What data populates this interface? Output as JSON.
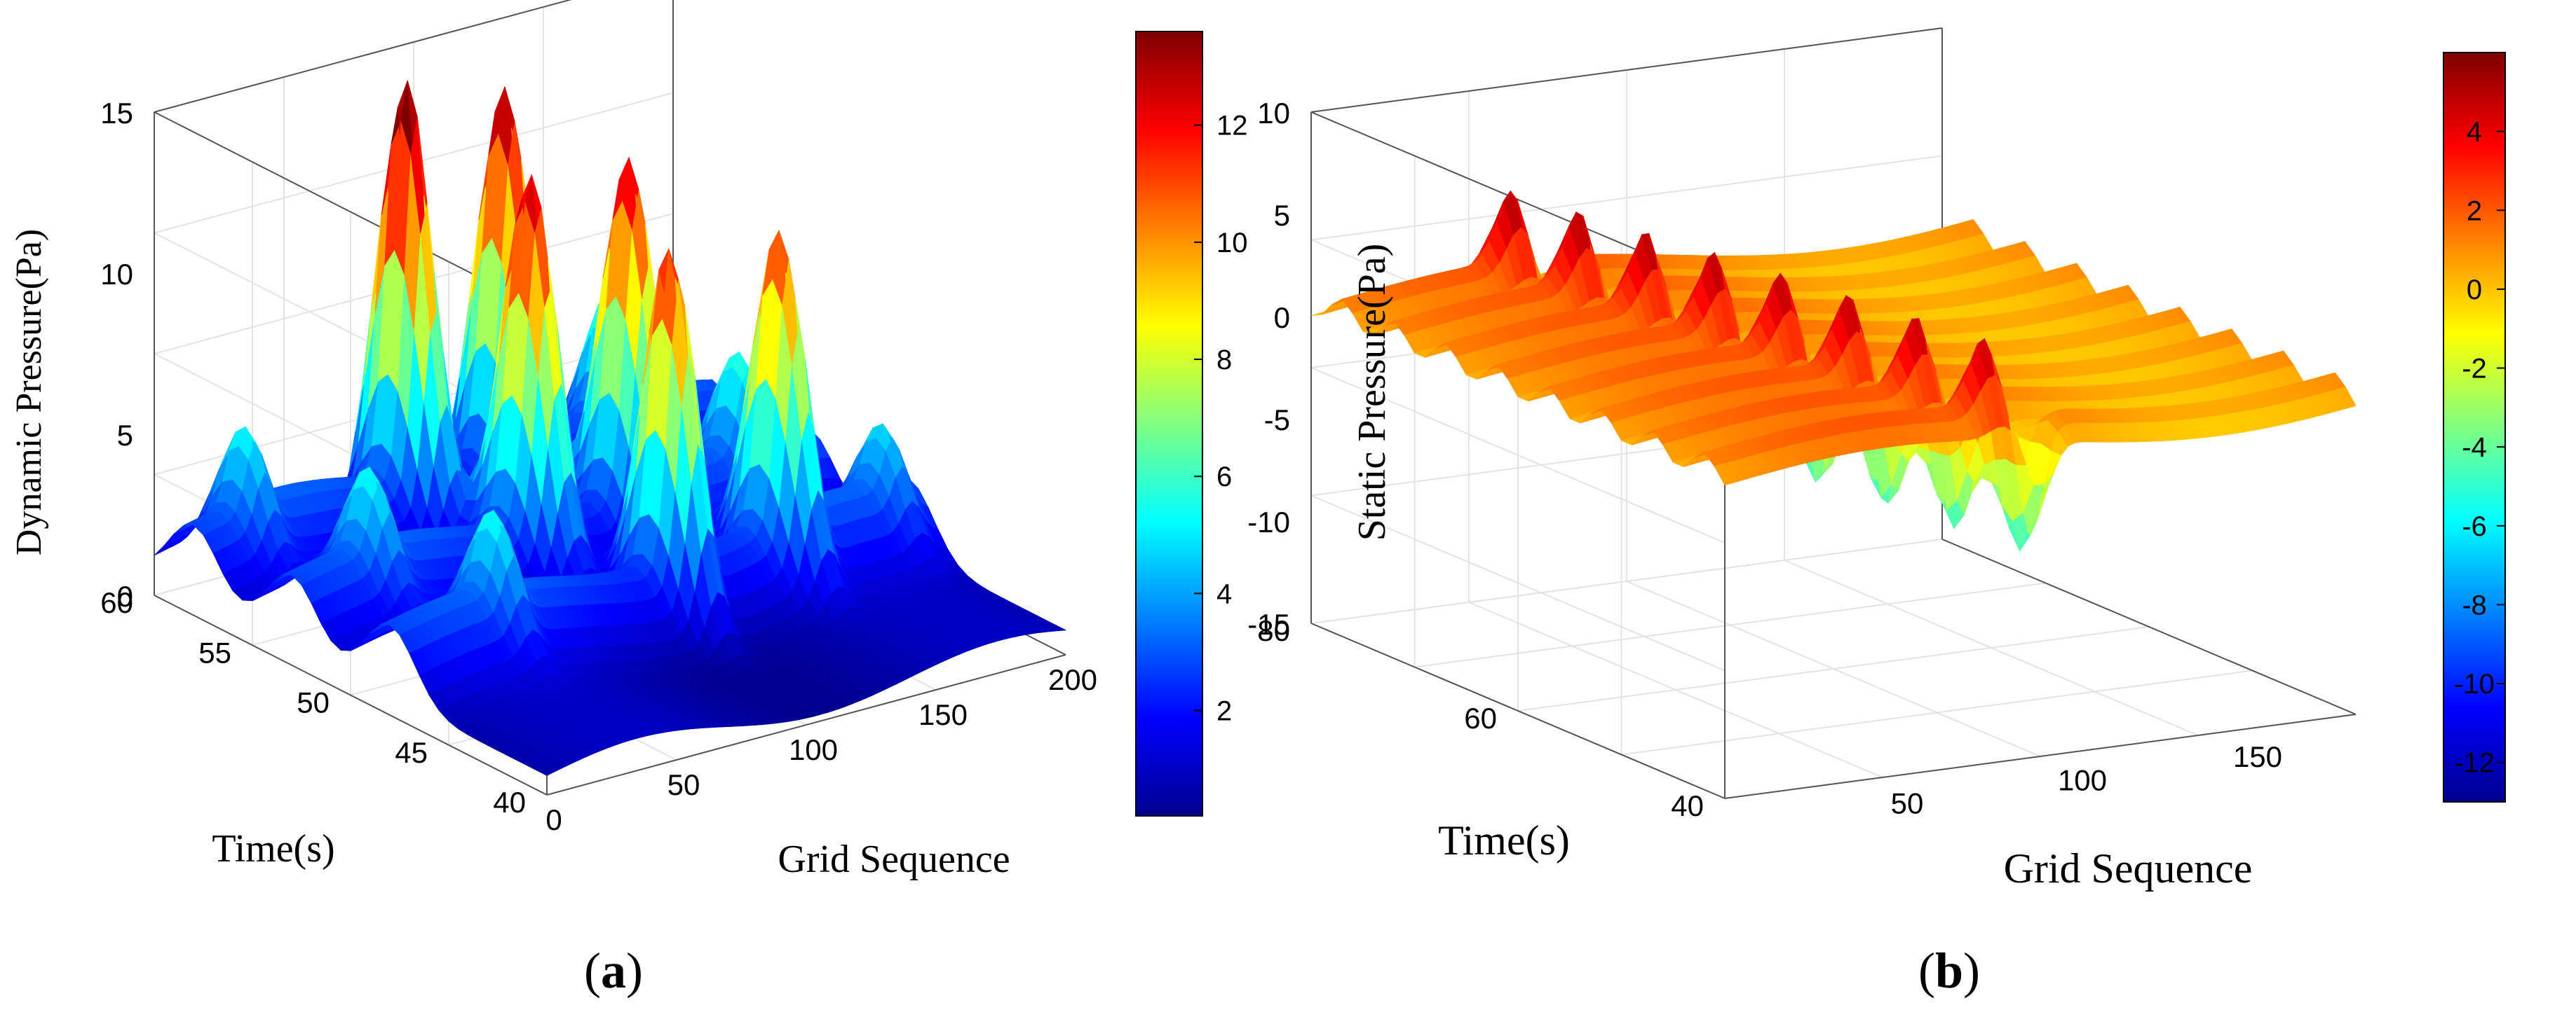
{
  "colormap": [
    "#00008f",
    "#0000ff",
    "#0080ff",
    "#00ffff",
    "#80ff80",
    "#ffff00",
    "#ff8000",
    "#ff0000",
    "#800000"
  ],
  "chart_data": [
    {
      "type": "surface",
      "panel_label_prefix": "(",
      "panel_label_letter": "a",
      "panel_label_suffix": ")",
      "zlabel": "Dynamic Pressure(Pa)",
      "ylabel": "Time(s)",
      "xlabel": "Grid Sequence",
      "xlim": [
        0,
        200
      ],
      "ylim": [
        40,
        60
      ],
      "zlim": [
        0,
        15
      ],
      "xticks": [
        0,
        50,
        100,
        150,
        200
      ],
      "yticks": [
        40,
        45,
        50,
        55,
        60
      ],
      "zticks": [
        0,
        5,
        10,
        15
      ],
      "grid": true,
      "colorbar": {
        "position": "right",
        "range": [
          0.2,
          13.6
        ],
        "ticks": [
          2,
          4,
          6,
          8,
          10,
          12
        ]
      },
      "base_level": 1.0,
      "grid_n": 200,
      "ridges": [
        {
          "time": 58,
          "peaks": [
            {
              "x": 20,
              "height": 4.5,
              "width": 5
            },
            {
              "x": 82,
              "height": 14.5,
              "width": 6
            },
            {
              "x": 120,
              "height": 13.5,
              "width": 7
            },
            {
              "x": 160,
              "height": 5.5,
              "width": 5
            }
          ]
        },
        {
          "time": 53,
          "peaks": [
            {
              "x": 30,
              "height": 4.5,
              "width": 5
            },
            {
              "x": 92,
              "height": 13.0,
              "width": 7
            },
            {
              "x": 130,
              "height": 12.5,
              "width": 7
            },
            {
              "x": 172,
              "height": 5.0,
              "width": 5
            }
          ]
        },
        {
          "time": 48,
          "peaks": [
            {
              "x": 40,
              "height": 4.5,
              "width": 5
            },
            {
              "x": 108,
              "height": 12.0,
              "width": 6
            },
            {
              "x": 150,
              "height": 11.0,
              "width": 6
            },
            {
              "x": 190,
              "height": 4.0,
              "width": 5
            }
          ]
        }
      ]
    },
    {
      "type": "surface",
      "panel_label_prefix": "(",
      "panel_label_letter": "b",
      "panel_label_suffix": ")",
      "zlabel": "Static Pressure(Pa)",
      "ylabel": "Time(s)",
      "xlabel": "Grid Sequence",
      "xlim": [
        0,
        180
      ],
      "ylim": [
        40,
        80
      ],
      "zlim": [
        -15,
        10
      ],
      "xticks": [
        50,
        100,
        150
      ],
      "yticks": [
        40,
        60,
        80
      ],
      "zticks": [
        -15,
        -10,
        -5,
        0,
        5,
        10
      ],
      "grid": true,
      "colorbar": {
        "position": "right",
        "range": [
          -13,
          6
        ],
        "ticks": [
          4,
          2,
          0,
          -2,
          -4,
          -6,
          -8,
          -10,
          -12
        ]
      },
      "base_level": 0.0,
      "grid_n": 180,
      "peak_line_x": 80,
      "peak_line_drift": 0.9,
      "peak_height": 5.0,
      "trough_depth": -12.0,
      "ridge_times": [
        42,
        47,
        52,
        57,
        62,
        67,
        72,
        77
      ]
    }
  ]
}
